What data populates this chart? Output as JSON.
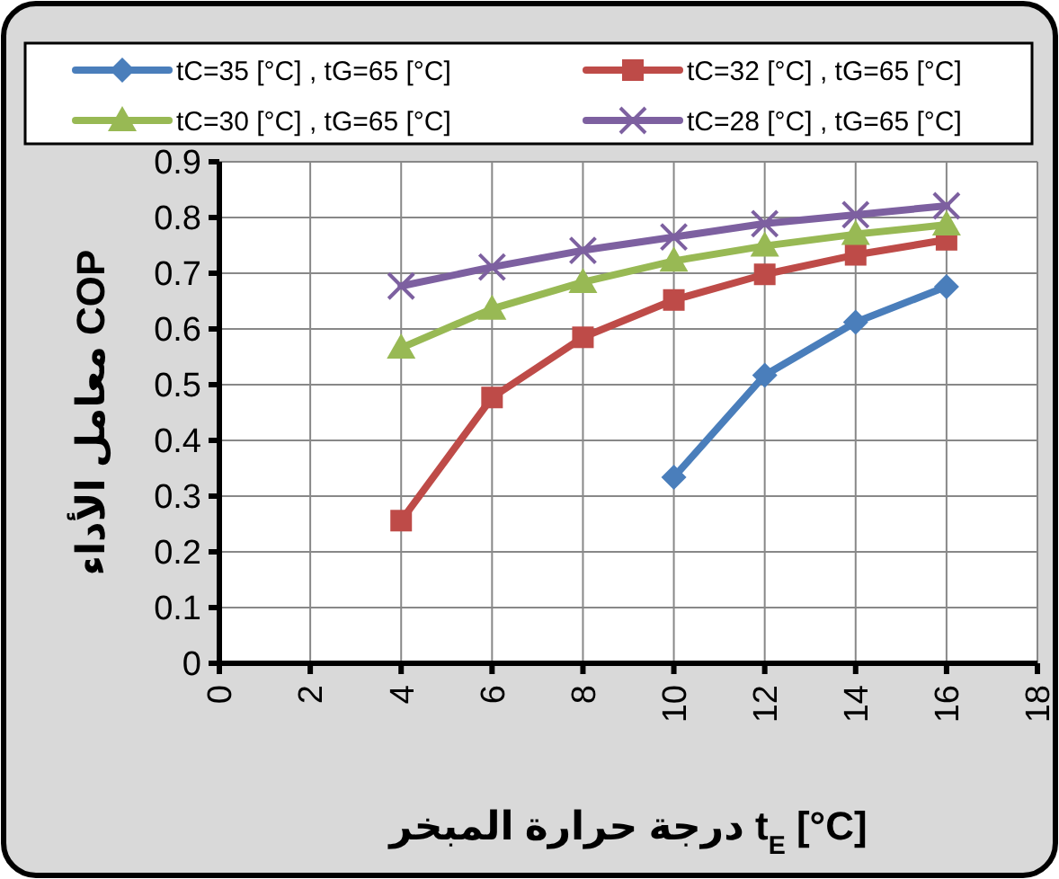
{
  "chart_data": {
    "type": "line",
    "xlabel": "درجة حرارة المبخر t$_{E}$ [°C]",
    "ylabel": "معامل الأداء COP",
    "x": [
      4,
      6,
      8,
      10,
      12,
      14,
      16
    ],
    "xlim": [
      0,
      18
    ],
    "xticks": [
      0,
      2,
      4,
      6,
      8,
      10,
      12,
      14,
      16,
      18
    ],
    "ylim": [
      0,
      0.9
    ],
    "yticks": [
      0,
      0.1,
      0.2,
      0.3,
      0.4,
      0.5,
      0.6,
      0.7,
      0.8,
      0.9
    ],
    "grid": true,
    "legend": "top",
    "line_style": "solid",
    "series": [
      {
        "name": "tC=35 [°C] , tG=65 [°C]",
        "color": "#4a7ebb",
        "marker": "diamond",
        "values": [
          null,
          null,
          null,
          0.334,
          0.517,
          0.612,
          0.676
        ]
      },
      {
        "name": "tC=32 [°C] , tG=65 [°C]",
        "color": "#be4b48",
        "marker": "square",
        "values": [
          0.256,
          0.477,
          0.585,
          0.652,
          0.698,
          0.733,
          0.76
        ]
      },
      {
        "name": "tC=30 [°C] , tG=65 [°C]",
        "color": "#98b954",
        "marker": "triangle",
        "values": [
          0.566,
          0.636,
          0.684,
          0.722,
          0.749,
          0.77,
          0.787
        ]
      },
      {
        "name": "tC=28 [°C] , tG=65 [°C]",
        "color": "#7d60a0",
        "marker": "cross",
        "values": [
          0.677,
          0.711,
          0.741,
          0.765,
          0.789,
          0.805,
          0.821
        ]
      }
    ]
  }
}
